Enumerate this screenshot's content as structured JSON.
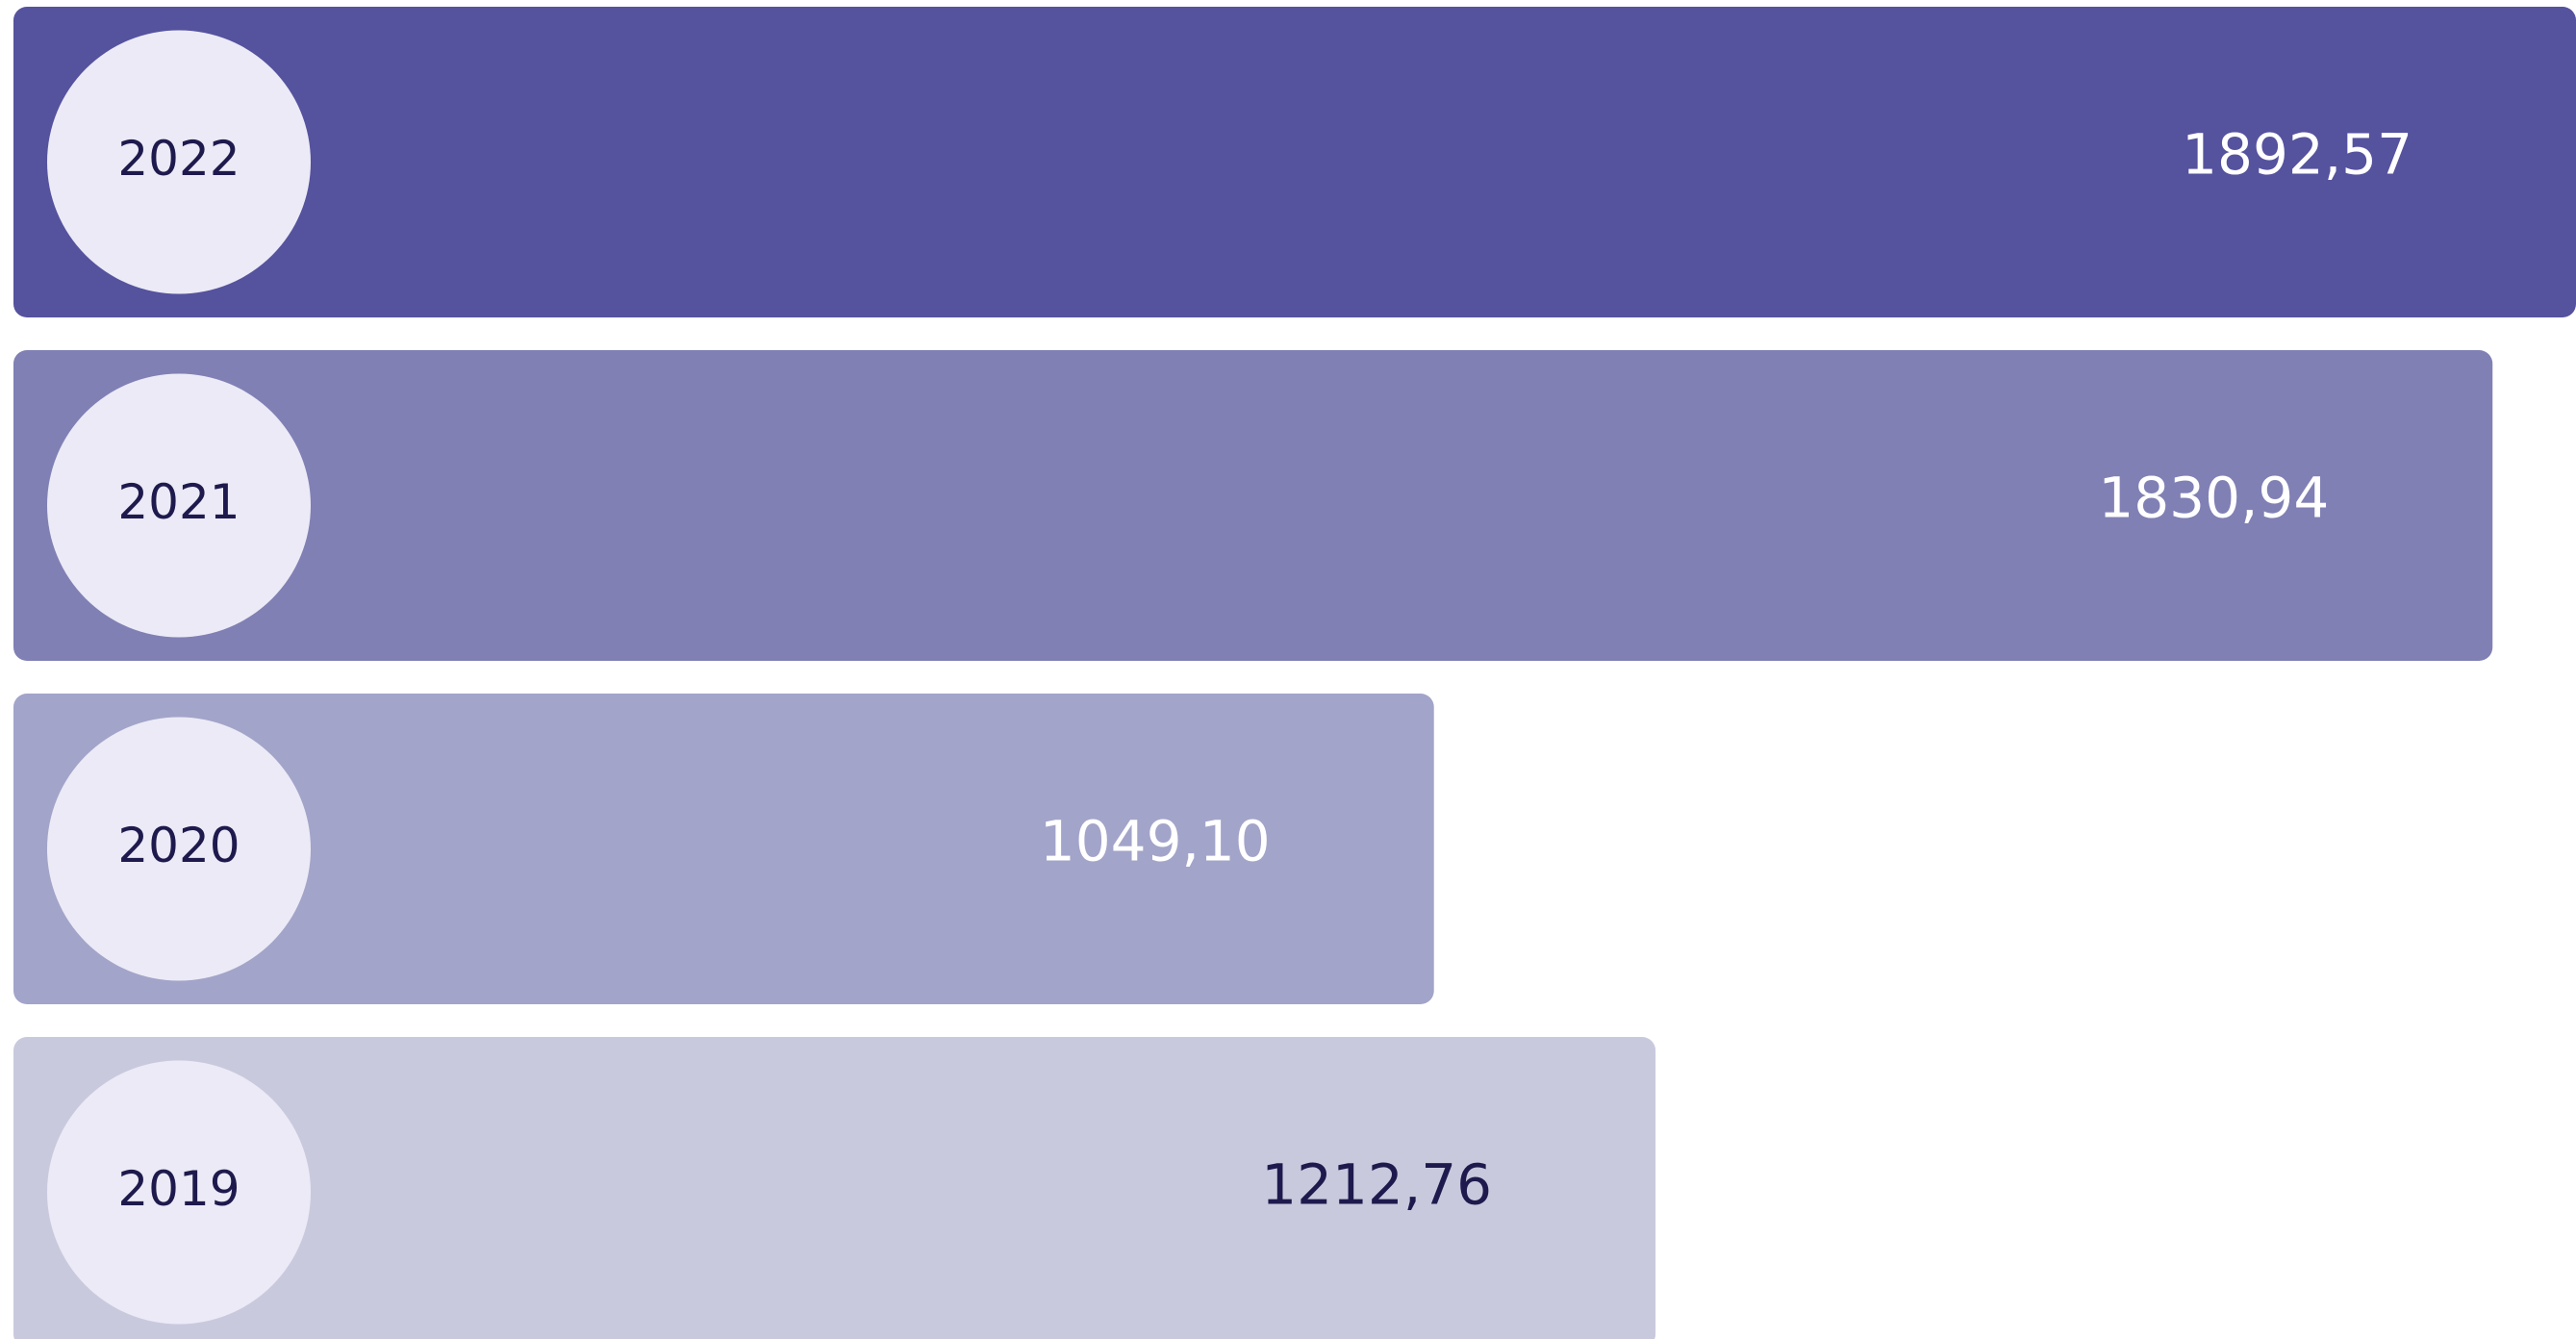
{
  "chart_data": {
    "type": "bar",
    "orientation": "horizontal",
    "categories": [
      "2022",
      "2021",
      "2020",
      "2019"
    ],
    "values": [
      1892.57,
      1830.94,
      1049.1,
      1212.76
    ],
    "value_labels": [
      "1892,57",
      "1830,94",
      "1049,10",
      "1212,76"
    ],
    "colors": [
      "#55529e",
      "#8080b5",
      "#a2a4c9",
      "#c9c9de"
    ],
    "label_colors": [
      "#ffffff",
      "#ffffff",
      "#ffffff",
      "#1e1a4d"
    ],
    "badge_color": "#ebeaf6",
    "badge_text_color": "#1e1a4d"
  }
}
